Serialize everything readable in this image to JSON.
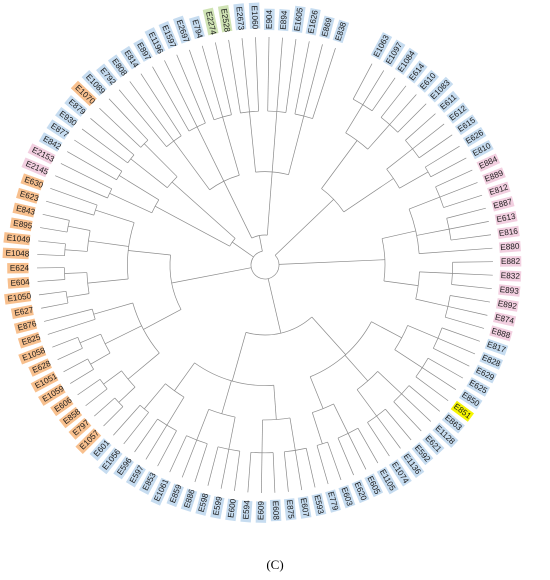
{
  "figure": {
    "panel_label": "(C)",
    "group_colors": {
      "orange": "#f8c08e",
      "blue": "#c6dcf0",
      "pink": "#f2cfe0",
      "green": "#cfe3b4",
      "yellow": "#f5f500"
    },
    "tips": [
      {
        "label": "E1063",
        "group": "blue"
      },
      {
        "label": "E1097",
        "group": "blue"
      },
      {
        "label": "E1084",
        "group": "blue"
      },
      {
        "label": "E614",
        "group": "blue"
      },
      {
        "label": "E610",
        "group": "blue"
      },
      {
        "label": "E1083",
        "group": "blue"
      },
      {
        "label": "E611",
        "group": "blue"
      },
      {
        "label": "E612",
        "group": "blue"
      },
      {
        "label": "E615",
        "group": "blue"
      },
      {
        "label": "E626",
        "group": "blue"
      },
      {
        "label": "E810",
        "group": "blue"
      },
      {
        "label": "E884",
        "group": "pink"
      },
      {
        "label": "E889",
        "group": "pink"
      },
      {
        "label": "E812",
        "group": "pink"
      },
      {
        "label": "E887",
        "group": "pink"
      },
      {
        "label": "E613",
        "group": "pink"
      },
      {
        "label": "E816",
        "group": "pink"
      },
      {
        "label": "E880",
        "group": "pink"
      },
      {
        "label": "E882",
        "group": "pink"
      },
      {
        "label": "E832",
        "group": "pink"
      },
      {
        "label": "E893",
        "group": "pink"
      },
      {
        "label": "E892",
        "group": "pink"
      },
      {
        "label": "E874",
        "group": "pink"
      },
      {
        "label": "E888",
        "group": "pink"
      },
      {
        "label": "E817",
        "group": "blue"
      },
      {
        "label": "E828",
        "group": "blue"
      },
      {
        "label": "E629",
        "group": "blue"
      },
      {
        "label": "E625",
        "group": "blue"
      },
      {
        "label": "E850",
        "group": "blue"
      },
      {
        "label": "E851",
        "group": "yellow"
      },
      {
        "label": "E863",
        "group": "blue"
      },
      {
        "label": "E1128",
        "group": "blue"
      },
      {
        "label": "E621",
        "group": "blue"
      },
      {
        "label": "E592",
        "group": "blue"
      },
      {
        "label": "E1136",
        "group": "blue"
      },
      {
        "label": "E1074",
        "group": "blue"
      },
      {
        "label": "E1105",
        "group": "blue"
      },
      {
        "label": "E605",
        "group": "blue"
      },
      {
        "label": "E620",
        "group": "blue"
      },
      {
        "label": "E603",
        "group": "blue"
      },
      {
        "label": "E779",
        "group": "blue"
      },
      {
        "label": "E593",
        "group": "blue"
      },
      {
        "label": "E607",
        "group": "blue"
      },
      {
        "label": "E875",
        "group": "blue"
      },
      {
        "label": "E608",
        "group": "blue"
      },
      {
        "label": "E609",
        "group": "blue"
      },
      {
        "label": "E594",
        "group": "blue"
      },
      {
        "label": "E600",
        "group": "blue"
      },
      {
        "label": "E599",
        "group": "blue"
      },
      {
        "label": "E598",
        "group": "blue"
      },
      {
        "label": "E886",
        "group": "blue"
      },
      {
        "label": "E859",
        "group": "blue"
      },
      {
        "label": "E1061",
        "group": "blue"
      },
      {
        "label": "E853",
        "group": "blue"
      },
      {
        "label": "E597",
        "group": "blue"
      },
      {
        "label": "E596",
        "group": "blue"
      },
      {
        "label": "E1056",
        "group": "blue"
      },
      {
        "label": "E601",
        "group": "blue"
      },
      {
        "label": "E1057",
        "group": "orange"
      },
      {
        "label": "E797",
        "group": "orange"
      },
      {
        "label": "E858",
        "group": "orange"
      },
      {
        "label": "E606",
        "group": "orange"
      },
      {
        "label": "E1059",
        "group": "orange"
      },
      {
        "label": "E1051",
        "group": "orange"
      },
      {
        "label": "E628",
        "group": "orange"
      },
      {
        "label": "E1058",
        "group": "orange"
      },
      {
        "label": "E825",
        "group": "orange"
      },
      {
        "label": "E876",
        "group": "orange"
      },
      {
        "label": "E627",
        "group": "orange"
      },
      {
        "label": "E1050",
        "group": "orange"
      },
      {
        "label": "E604",
        "group": "orange"
      },
      {
        "label": "E624",
        "group": "orange"
      },
      {
        "label": "E1048",
        "group": "orange"
      },
      {
        "label": "E1049",
        "group": "orange"
      },
      {
        "label": "E895",
        "group": "orange"
      },
      {
        "label": "E843",
        "group": "orange"
      },
      {
        "label": "E623",
        "group": "orange"
      },
      {
        "label": "E630",
        "group": "orange"
      },
      {
        "label": "E2145",
        "group": "pink"
      },
      {
        "label": "E2153",
        "group": "pink"
      },
      {
        "label": "E842",
        "group": "blue"
      },
      {
        "label": "E877",
        "group": "blue"
      },
      {
        "label": "E930",
        "group": "blue"
      },
      {
        "label": "E879",
        "group": "blue"
      },
      {
        "label": "E1070",
        "group": "orange"
      },
      {
        "label": "E1089",
        "group": "blue"
      },
      {
        "label": "E792",
        "group": "blue"
      },
      {
        "label": "E808",
        "group": "blue"
      },
      {
        "label": "E814",
        "group": "blue"
      },
      {
        "label": "E897",
        "group": "blue"
      },
      {
        "label": "E1196",
        "group": "blue"
      },
      {
        "label": "E1597",
        "group": "blue"
      },
      {
        "label": "E2697",
        "group": "blue"
      },
      {
        "label": "E794",
        "group": "blue"
      },
      {
        "label": "E2274",
        "group": "green"
      },
      {
        "label": "E2528",
        "group": "green"
      },
      {
        "label": "E2673",
        "group": "blue"
      },
      {
        "label": "E1060",
        "group": "blue"
      },
      {
        "label": "E904",
        "group": "blue"
      },
      {
        "label": "E894",
        "group": "blue"
      },
      {
        "label": "E1605",
        "group": "blue"
      },
      {
        "label": "E1626",
        "group": "blue"
      },
      {
        "label": "E869",
        "group": "blue"
      },
      {
        "label": "E838",
        "group": "blue"
      }
    ]
  }
}
